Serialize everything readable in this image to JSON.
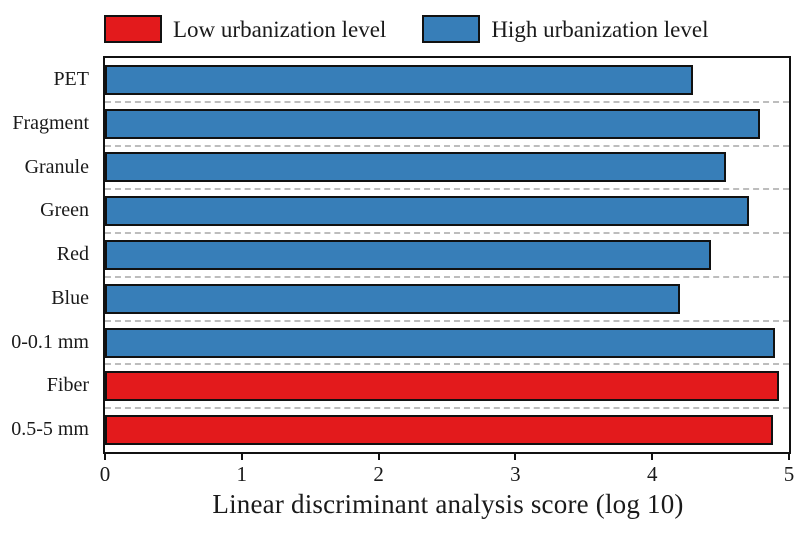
{
  "legend": {
    "items": [
      {
        "label": "Low urbanization level",
        "color": "#e31a1c"
      },
      {
        "label": "High urbanization level",
        "color": "#377eb8"
      }
    ]
  },
  "chart_data": {
    "type": "bar",
    "orientation": "horizontal",
    "title": "",
    "categories": [
      "PET",
      "Fragment",
      "Granule",
      "Green",
      "Red",
      "Blue",
      "0-0.1 mm",
      "Fiber",
      "0.5-5 mm"
    ],
    "series": [
      {
        "name": "High urbanization level",
        "color": "#377eb8",
        "values": [
          4.3,
          4.79,
          4.54,
          4.71,
          4.43,
          4.2,
          4.9,
          null,
          null
        ]
      },
      {
        "name": "Low urbanization level",
        "color": "#e31a1c",
        "values": [
          null,
          null,
          null,
          null,
          null,
          null,
          null,
          4.93,
          4.88
        ]
      }
    ],
    "xlabel": "Linear discriminant analysis score (log 10)",
    "xticks": [
      0,
      1,
      2,
      3,
      4,
      5
    ],
    "xlim": [
      0,
      5
    ],
    "grid": "dashed horizontal between categories",
    "legend_position": "top",
    "bar_border_color": "#111111",
    "grid_color": "#bdbdbd"
  }
}
